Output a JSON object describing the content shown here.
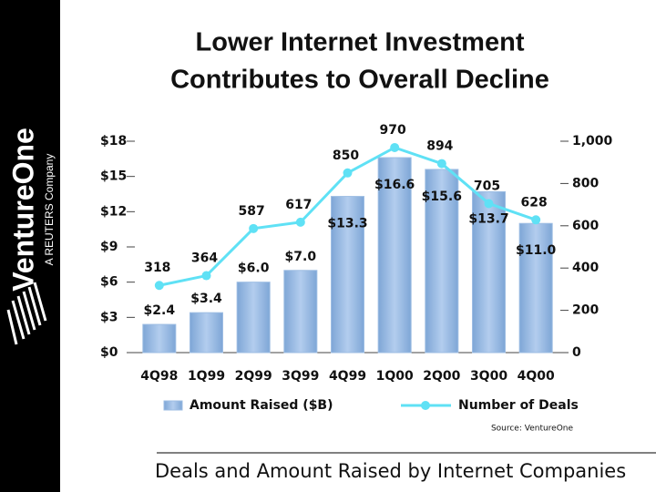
{
  "logo": {
    "name": "VentureOne",
    "tagline": "A REUTERS Company"
  },
  "caption": "Deals and Amount Raised by Internet Companies",
  "chart_data": {
    "type": "bar-line",
    "title": [
      "Lower Internet Investment",
      "Contributes to Overall Decline"
    ],
    "source": "Source: VentureOne",
    "categories": [
      "4Q98",
      "1Q99",
      "2Q99",
      "3Q99",
      "4Q99",
      "1Q00",
      "2Q00",
      "3Q00",
      "4Q00"
    ],
    "series": [
      {
        "name": "Amount Raised ($B)",
        "type": "bar",
        "color": "#9dbde3",
        "values": [
          2.4,
          3.4,
          6.0,
          7.0,
          13.3,
          16.6,
          15.6,
          13.7,
          11.0
        ],
        "value_labels": [
          "$2.4",
          "$3.4",
          "$6.0",
          "$7.0",
          "$13.3",
          "$16.6",
          "$15.6",
          "$13.7",
          "$11.0"
        ]
      },
      {
        "name": "Number of Deals",
        "type": "line",
        "axis": "y2",
        "color": "#5fe1f5",
        "values": [
          318,
          364,
          587,
          617,
          850,
          970,
          894,
          705,
          628
        ]
      }
    ],
    "ylim": [
      0,
      18
    ],
    "yticks": [
      {
        "value": 0,
        "label": "$0"
      },
      {
        "value": 3,
        "label": "$3"
      },
      {
        "value": 6,
        "label": "$6"
      },
      {
        "value": 9,
        "label": "$9"
      },
      {
        "value": 12,
        "label": "$12"
      },
      {
        "value": 15,
        "label": "$15"
      },
      {
        "value": 18,
        "label": "$18"
      }
    ],
    "y2lim": [
      0,
      1000
    ],
    "y2ticks": [
      0,
      200,
      400,
      600,
      800,
      {
        "value": 1000,
        "label": "1,000"
      }
    ],
    "grid": false,
    "legend": "bottom"
  }
}
